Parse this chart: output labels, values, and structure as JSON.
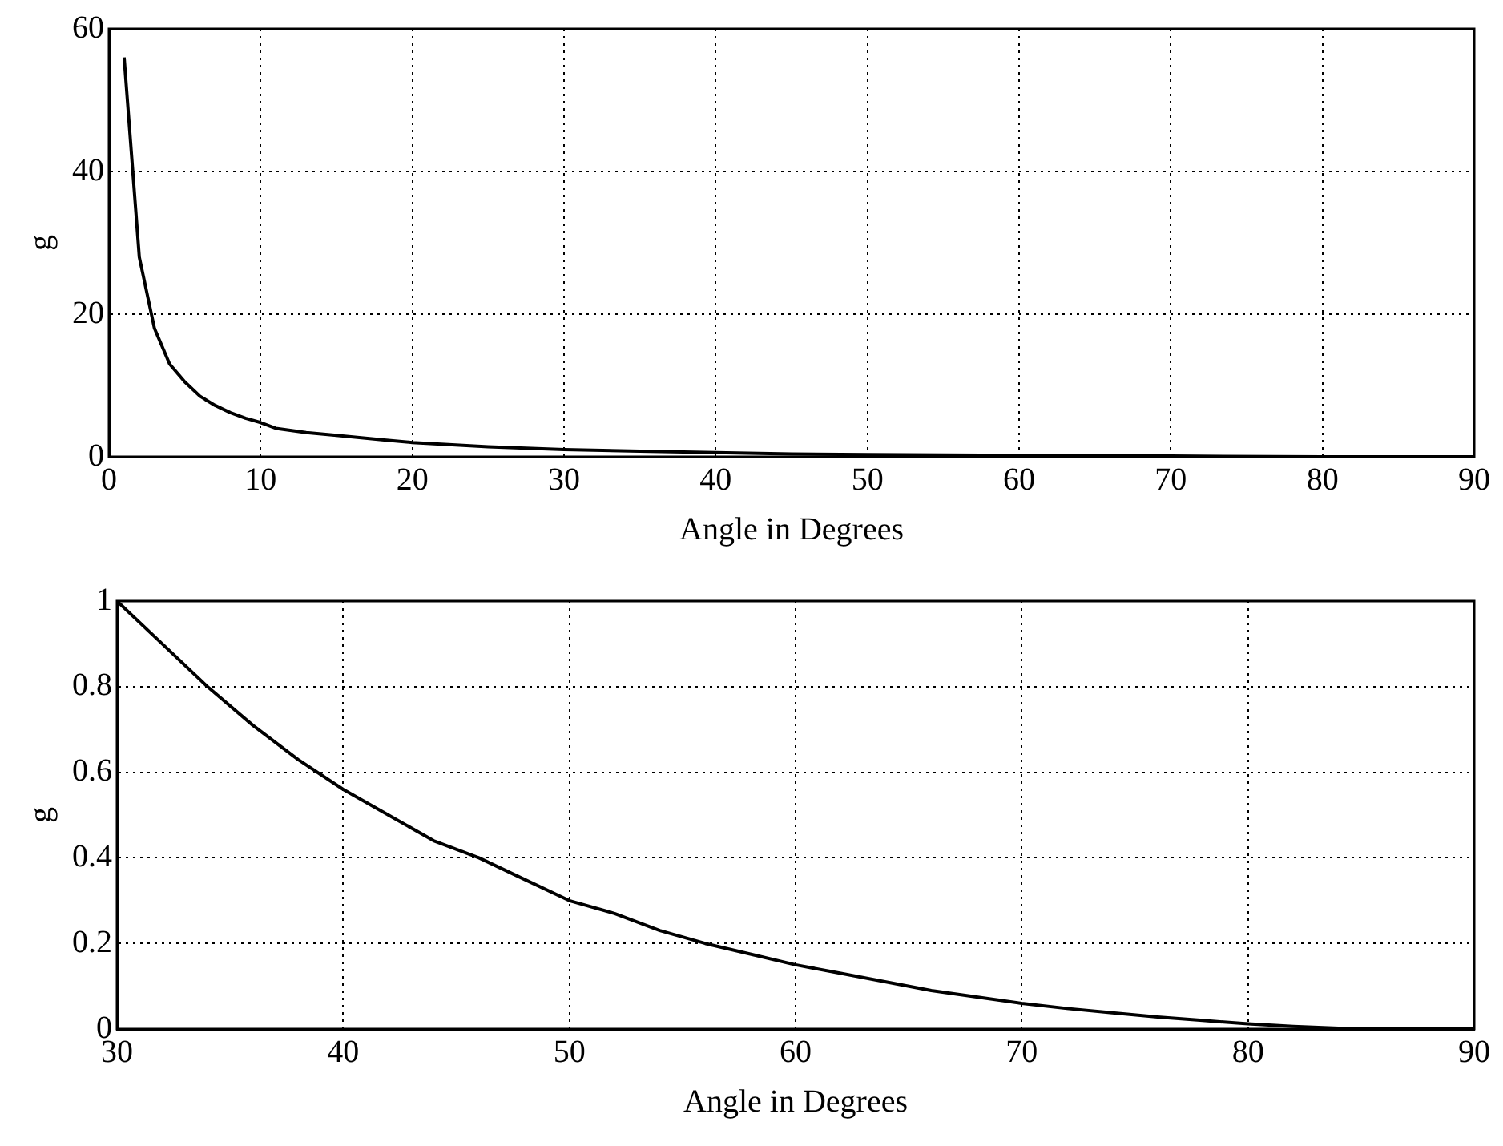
{
  "chart_data": [
    {
      "type": "line",
      "xlabel": "Angle in Degrees",
      "ylabel": "g",
      "xlim": [
        0,
        90
      ],
      "xticks": [
        0,
        10,
        20,
        30,
        40,
        50,
        60,
        70,
        80,
        90
      ],
      "ylim": [
        0,
        60
      ],
      "yticks": [
        0,
        20,
        40,
        60
      ],
      "grid": true,
      "legend": false,
      "marker": "none",
      "line_style": "solid",
      "series": [
        {
          "color": "#000000",
          "x": [
            1,
            2,
            3,
            4,
            5,
            6,
            7,
            8,
            9,
            10,
            11,
            13,
            15,
            18,
            20,
            25,
            30,
            35,
            40,
            45,
            50,
            60,
            70,
            80,
            90
          ],
          "values": [
            56,
            28,
            18,
            13,
            10.5,
            8.5,
            7.2,
            6.2,
            5.4,
            4.8,
            4,
            3.4,
            3,
            2.4,
            2,
            1.4,
            1,
            0.8,
            0.6,
            0.4,
            0.3,
            0.2,
            0.1,
            0,
            0
          ]
        }
      ]
    },
    {
      "type": "line",
      "xlabel": "Angle in Degrees",
      "ylabel": "g",
      "xlim": [
        30,
        90
      ],
      "xticks": [
        30,
        40,
        50,
        60,
        70,
        80,
        90
      ],
      "ylim": [
        0,
        1
      ],
      "yticks": [
        0,
        0.2,
        0.4,
        0.6,
        0.8,
        1
      ],
      "grid": true,
      "legend": false,
      "marker": "none",
      "line_style": "solid",
      "series": [
        {
          "color": "#000000",
          "x": [
            30,
            32,
            34,
            36,
            38,
            40,
            42,
            44,
            46,
            48,
            50,
            52,
            54,
            56,
            58,
            60,
            62,
            64,
            66,
            68,
            70,
            72,
            74,
            76,
            78,
            80,
            82,
            84,
            86,
            88,
            90
          ],
          "values": [
            1,
            0.9,
            0.8,
            0.71,
            0.63,
            0.56,
            0.5,
            0.44,
            0.4,
            0.35,
            0.3,
            0.27,
            0.23,
            0.2,
            0.175,
            0.15,
            0.13,
            0.11,
            0.09,
            0.075,
            0.06,
            0.048,
            0.038,
            0.028,
            0.02,
            0.012,
            0.006,
            0.002,
            0,
            0,
            0
          ]
        }
      ]
    }
  ]
}
